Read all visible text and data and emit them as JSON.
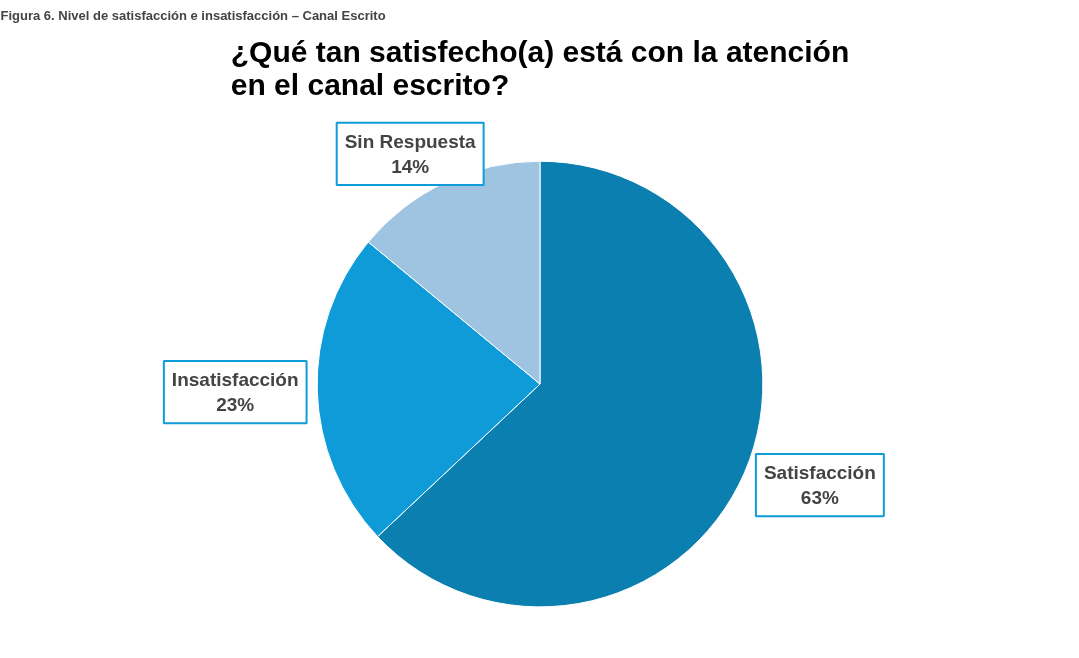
{
  "chart_data": {
    "type": "pie",
    "title": "¿Qué tan satisfecho(a) está con la atención en el canal escrito?",
    "annotations": [
      "Figura 6. Nivel de satisfacción e insatisfacción – Canal Escrito"
    ],
    "categories": [
      "Satisfacción",
      "Insatisfacción",
      "Sin Respuesta"
    ],
    "values": [
      63,
      23,
      14
    ],
    "value_labels": [
      "63%",
      "23%",
      "14%"
    ],
    "colors": [
      "#0a7fb0",
      "#0f9bd7",
      "#9fc4e2"
    ]
  }
}
